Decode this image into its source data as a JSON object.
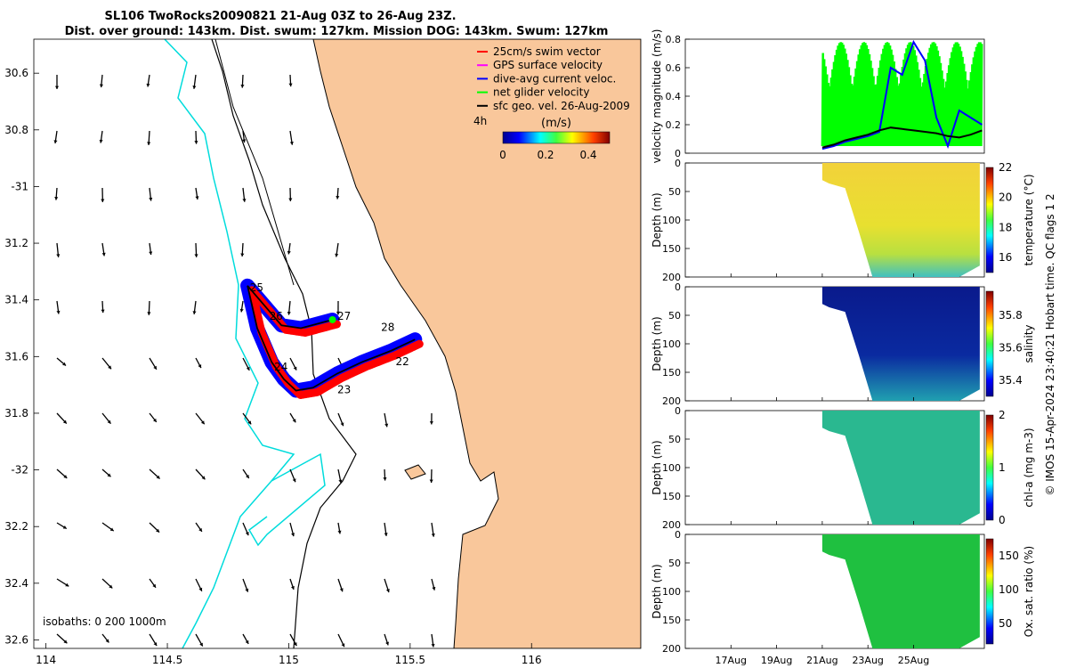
{
  "header": {
    "title": "SL106 TwoRocks20090821 21-Aug 03Z to 26-Aug 23Z.",
    "subtitle": "Dist. over ground: 143km. Dist. swum: 127km. Mission DOG: 143km. Swum: 127km"
  },
  "footer_note": "© IMOS 15-Apr-2024 23:40:21 Hobart time. QC flags 1  2",
  "colors": {
    "land": "#f9c79b",
    "blue_track": "#0000ff",
    "red_track": "#ff0000",
    "green": "#00ff00",
    "isobath": "#00e0e0",
    "coast": "#000000"
  },
  "chart_data": [
    {
      "type": "scatter",
      "id": "map",
      "xlabel": "",
      "ylabel": "",
      "xlim": [
        113.95,
        116.45
      ],
      "ylim": [
        -32.63,
        -30.48
      ],
      "x_ticks": [
        114,
        114.5,
        115,
        115.5,
        116
      ],
      "x_tick_labels": [
        "114",
        "114.5",
        "115",
        "115.5",
        "116"
      ],
      "y_ticks": [
        -30.6,
        -30.8,
        -31,
        -31.2,
        -31.4,
        -31.6,
        -31.8,
        -32,
        -32.2,
        -32.4,
        -32.6
      ],
      "y_tick_labels": [
        "30.6",
        "30.8",
        "-31",
        "31.2",
        "31.4",
        "31.6",
        "31.8",
        "-32",
        "32.2",
        "32.4",
        "32.6"
      ],
      "legend": {
        "placement": "top-right",
        "entries": [
          {
            "label": "25cm/s swim vector",
            "color": "#ff0000"
          },
          {
            "label": "GPS surface velocity",
            "color": "#ff00ff"
          },
          {
            "label": "dive-avg current veloc.",
            "color": "#0000ff"
          },
          {
            "label": "net glider velocity",
            "color": "#00ff00"
          },
          {
            "label": "sfc geo. vel. 26-Aug-2009",
            "color": "#000000"
          }
        ]
      },
      "time_step_label": "4h",
      "colorbar": {
        "label": "(m/s)",
        "ticks": [
          0,
          0.2,
          0.4
        ],
        "range": [
          0,
          0.5
        ]
      },
      "isobath_label": "isobaths: 0   200  1000m",
      "track": {
        "lon": [
          115.18,
          115.05,
          114.97,
          114.9,
          114.83,
          114.87,
          114.93,
          114.98,
          115.03,
          115.1,
          115.2,
          115.3,
          115.42,
          115.52
        ],
        "lat": [
          -31.47,
          -31.5,
          -31.49,
          -31.42,
          -31.35,
          -31.5,
          -31.62,
          -31.68,
          -31.72,
          -31.71,
          -31.66,
          -31.62,
          -31.58,
          -31.54
        ]
      },
      "day_labels": [
        {
          "text": "25",
          "lon": 114.84,
          "lat": -31.37
        },
        {
          "text": "26",
          "lon": 114.92,
          "lat": -31.47
        },
        {
          "text": "27",
          "lon": 115.2,
          "lat": -31.47
        },
        {
          "text": "28",
          "lon": 115.38,
          "lat": -31.51
        },
        {
          "text": "22",
          "lon": 115.44,
          "lat": -31.63
        },
        {
          "text": "23",
          "lon": 115.2,
          "lat": -31.73
        },
        {
          "text": "24",
          "lon": 114.94,
          "lat": -31.65
        }
      ]
    },
    {
      "type": "line",
      "id": "velocity",
      "ylabel": "velocity magnitude (m/s)",
      "ylim": [
        0,
        0.8
      ],
      "y_ticks": [
        0,
        0.2,
        0.4,
        0.6,
        0.8
      ],
      "x_unit": "day of Aug 2009",
      "xlim": [
        15,
        28.1
      ],
      "series": [
        {
          "color": "#0000ff",
          "x": [
            21,
            21.5,
            22,
            22.5,
            23,
            23.5,
            24,
            24.5,
            25,
            25.5,
            26,
            26.5,
            27,
            27.5,
            28
          ],
          "y": [
            0.03,
            0.05,
            0.08,
            0.1,
            0.12,
            0.15,
            0.6,
            0.55,
            0.78,
            0.65,
            0.25,
            0.05,
            0.3,
            0.25,
            0.2
          ]
        },
        {
          "color": "#000000",
          "x": [
            21,
            21.5,
            22,
            22.5,
            23,
            23.5,
            24,
            24.5,
            25,
            25.5,
            26,
            26.5,
            27,
            27.5,
            28
          ],
          "y": [
            0.04,
            0.06,
            0.09,
            0.11,
            0.13,
            0.16,
            0.18,
            0.17,
            0.16,
            0.15,
            0.14,
            0.12,
            0.11,
            0.13,
            0.16
          ]
        }
      ],
      "green_band": {
        "x_start": 21,
        "x_end": 28,
        "y_low": 0.05,
        "y_high": 0.78
      }
    },
    {
      "type": "heatmap",
      "id": "temperature",
      "ylabel": "Depth (m)",
      "colorbar_label": "temperature (°C)",
      "colorbar_ticks": [
        "16",
        "18",
        "20",
        "22"
      ],
      "clim": [
        15,
        22
      ],
      "ylim": [
        0,
        200
      ],
      "y_ticks": [
        0,
        50,
        100,
        150,
        200
      ],
      "dominant_value": 20
    },
    {
      "type": "heatmap",
      "id": "salinity",
      "ylabel": "Depth (m)",
      "colorbar_label": "salinity",
      "colorbar_ticks": [
        "35.4",
        "35.6",
        "35.8"
      ],
      "clim": [
        35.3,
        35.95
      ],
      "ylim": [
        0,
        200
      ],
      "y_ticks": [
        0,
        50,
        100,
        150,
        200
      ],
      "dominant_value": 35.35
    },
    {
      "type": "heatmap",
      "id": "chla",
      "ylabel": "Depth (m)",
      "colorbar_label": "chl-a (mg m-3)",
      "colorbar_ticks": [
        "0",
        "1",
        "2"
      ],
      "clim": [
        0,
        2
      ],
      "ylim": [
        0,
        200
      ],
      "y_ticks": [
        0,
        50,
        100,
        150,
        200
      ],
      "dominant_value": 0.9
    },
    {
      "type": "heatmap",
      "id": "oxygen",
      "ylabel": "Depth (m)",
      "colorbar_label": "Ox. sat. ratio (%)",
      "colorbar_ticks": [
        "50",
        "100",
        "150"
      ],
      "clim": [
        20,
        175
      ],
      "ylim": [
        0,
        200
      ],
      "y_ticks": [
        0,
        50,
        100,
        150,
        200
      ],
      "dominant_value": 100,
      "x_tick_labels": [
        "17Aug",
        "19Aug",
        "21Aug",
        "23Aug",
        "25Aug"
      ],
      "x_tick_days": [
        17,
        19,
        21,
        23,
        25
      ]
    }
  ]
}
